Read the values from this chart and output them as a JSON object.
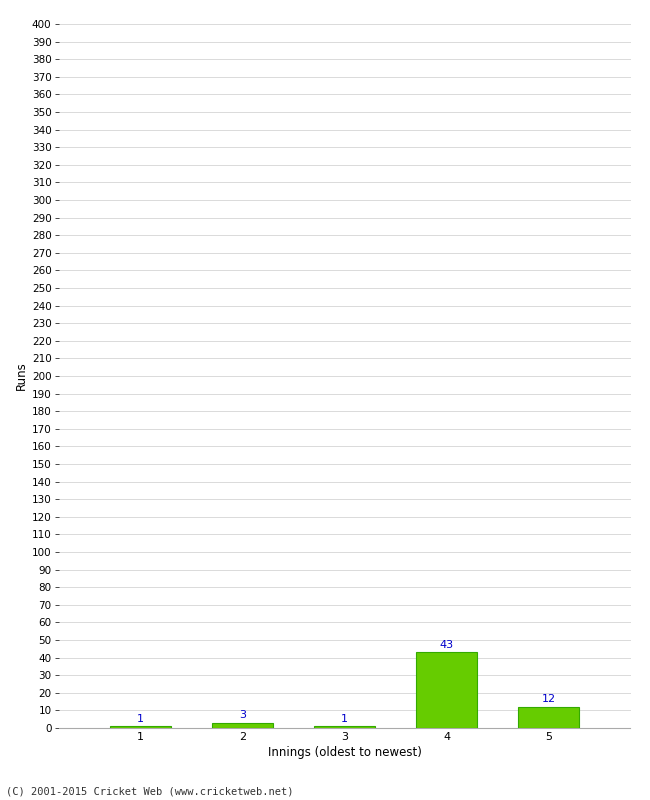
{
  "categories": [
    "1",
    "2",
    "3",
    "4",
    "5"
  ],
  "values": [
    1,
    3,
    1,
    43,
    12
  ],
  "bar_color": "#66cc00",
  "bar_edge_color": "#33aa00",
  "label_color": "#0000cc",
  "xlabel": "Innings (oldest to newest)",
  "ylabel": "Runs",
  "ylim": [
    0,
    400
  ],
  "ytick_step": 10,
  "background_color": "#ffffff",
  "grid_color": "#cccccc",
  "footer": "(C) 2001-2015 Cricket Web (www.cricketweb.net)"
}
